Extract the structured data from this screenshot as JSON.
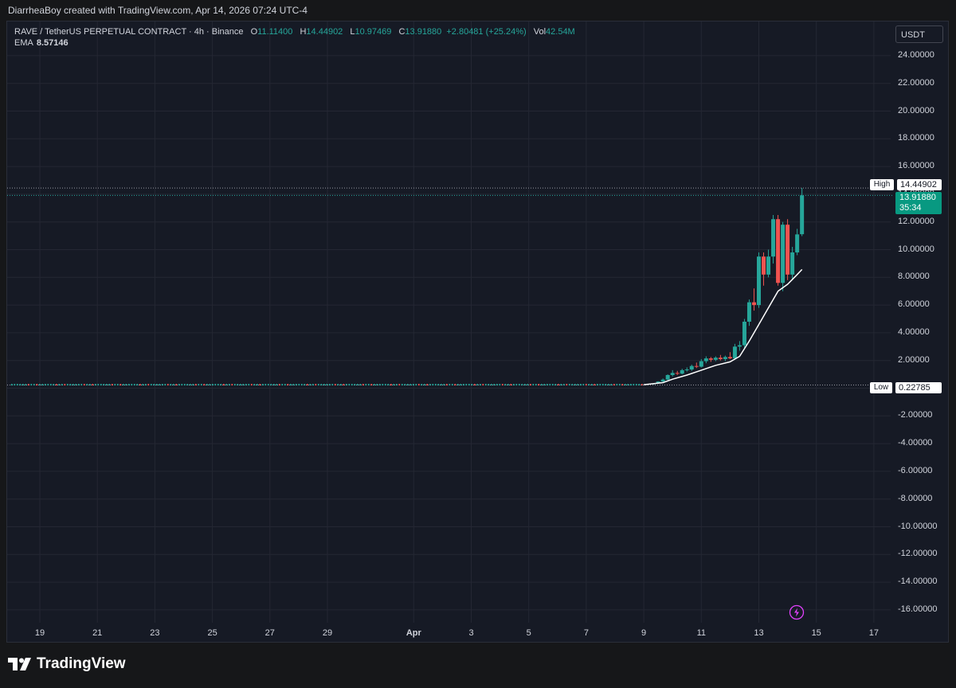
{
  "credit": "DiarrheaBoy created with TradingView.com, Apr 14, 2026 07:24 UTC-4",
  "legend": {
    "symbol": "RAVE / TetherUS PERPETUAL CONTRACT · 4h · Binance",
    "o_label": "O",
    "o": "11.11400",
    "h_label": "H",
    "h": "14.44902",
    "l_label": "L",
    "l": "10.97469",
    "c_label": "C",
    "c": "13.91880",
    "change": "+2.80481 (+25.24%)",
    "vol_label": "Vol",
    "vol": "42.54M"
  },
  "ema": {
    "label": "EMA",
    "value": "8.57146"
  },
  "currency": "USDT",
  "markers": {
    "high_label": "High",
    "high_value": "14.44902",
    "last_price": "13.91880",
    "countdown": "35:34",
    "low_label": "Low",
    "low_value": "0.22785"
  },
  "brand": "TradingView",
  "colors": {
    "up": "#26a69a",
    "down": "#ef5350",
    "ema": "#ffffff",
    "background": "#161a25",
    "grid": "#242733"
  },
  "chart_data": {
    "type": "candlestick",
    "title": "RAVE / TetherUS PERPETUAL CONTRACT · 4h · Binance",
    "ylim": [
      -17,
      25
    ],
    "y_ticks": [
      "24.00000",
      "22.00000",
      "20.00000",
      "18.00000",
      "16.00000",
      "14.00000",
      "12.00000",
      "10.00000",
      "8.00000",
      "6.00000",
      "4.00000",
      "2.00000",
      "0.00000",
      "-2.00000",
      "-4.00000",
      "-6.00000",
      "-8.00000",
      "-10.00000",
      "-12.00000",
      "-14.00000",
      "-16.00000"
    ],
    "x_ticks": [
      "19",
      "21",
      "23",
      "25",
      "27",
      "29",
      "Apr",
      "3",
      "5",
      "7",
      "9",
      "11",
      "13",
      "15",
      "17"
    ],
    "high": 14.44902,
    "low": 0.22785,
    "last": 13.9188,
    "flat_range": {
      "from": "Mar 18",
      "to": "Apr 9",
      "approx_price": 0.25
    },
    "candles": [
      {
        "t": "Apr 9 08:00",
        "o": 0.3,
        "h": 0.36,
        "l": 0.26,
        "c": 0.34
      },
      {
        "t": "Apr 9 12:00",
        "o": 0.34,
        "h": 0.5,
        "l": 0.32,
        "c": 0.48
      },
      {
        "t": "Apr 9 16:00",
        "o": 0.48,
        "h": 0.7,
        "l": 0.45,
        "c": 0.62
      },
      {
        "t": "Apr 9 20:00",
        "o": 0.62,
        "h": 1.0,
        "l": 0.58,
        "c": 0.95
      },
      {
        "t": "Apr 10 00:00",
        "o": 0.95,
        "h": 1.3,
        "l": 0.85,
        "c": 1.1
      },
      {
        "t": "Apr 10 04:00",
        "o": 1.1,
        "h": 1.25,
        "l": 0.95,
        "c": 1.05
      },
      {
        "t": "Apr 10 08:00",
        "o": 1.05,
        "h": 1.4,
        "l": 1.0,
        "c": 1.3
      },
      {
        "t": "Apr 10 12:00",
        "o": 1.3,
        "h": 1.5,
        "l": 1.2,
        "c": 1.35
      },
      {
        "t": "Apr 10 16:00",
        "o": 1.35,
        "h": 1.7,
        "l": 1.25,
        "c": 1.6
      },
      {
        "t": "Apr 10 20:00",
        "o": 1.6,
        "h": 1.85,
        "l": 1.45,
        "c": 1.55
      },
      {
        "t": "Apr 11 00:00",
        "o": 1.55,
        "h": 2.1,
        "l": 1.5,
        "c": 1.95
      },
      {
        "t": "Apr 11 04:00",
        "o": 1.95,
        "h": 2.3,
        "l": 1.8,
        "c": 2.15
      },
      {
        "t": "Apr 11 08:00",
        "o": 2.15,
        "h": 2.25,
        "l": 1.9,
        "c": 2.05
      },
      {
        "t": "Apr 11 12:00",
        "o": 2.05,
        "h": 2.3,
        "l": 1.95,
        "c": 2.2
      },
      {
        "t": "Apr 11 16:00",
        "o": 2.2,
        "h": 2.4,
        "l": 2.0,
        "c": 2.1
      },
      {
        "t": "Apr 11 20:00",
        "o": 2.1,
        "h": 2.35,
        "l": 1.95,
        "c": 2.25
      },
      {
        "t": "Apr 12 00:00",
        "o": 2.25,
        "h": 2.6,
        "l": 2.1,
        "c": 2.15
      },
      {
        "t": "Apr 12 04:00",
        "o": 2.15,
        "h": 3.2,
        "l": 2.05,
        "c": 3.0
      },
      {
        "t": "Apr 12 08:00",
        "o": 3.0,
        "h": 3.4,
        "l": 2.7,
        "c": 3.1
      },
      {
        "t": "Apr 12 12:00",
        "o": 3.1,
        "h": 5.0,
        "l": 2.9,
        "c": 4.8
      },
      {
        "t": "Apr 12 16:00",
        "o": 4.8,
        "h": 6.4,
        "l": 4.5,
        "c": 6.2
      },
      {
        "t": "Apr 12 20:00",
        "o": 6.2,
        "h": 7.2,
        "l": 5.6,
        "c": 6.0
      },
      {
        "t": "Apr 13 00:00",
        "o": 6.0,
        "h": 9.8,
        "l": 5.8,
        "c": 9.5
      },
      {
        "t": "Apr 13 04:00",
        "o": 9.5,
        "h": 9.8,
        "l": 7.4,
        "c": 8.2
      },
      {
        "t": "Apr 13 08:00",
        "o": 8.2,
        "h": 10.0,
        "l": 8.0,
        "c": 9.5
      },
      {
        "t": "Apr 13 12:00",
        "o": 9.5,
        "h": 12.5,
        "l": 9.0,
        "c": 12.2
      },
      {
        "t": "Apr 13 16:00",
        "o": 12.2,
        "h": 12.5,
        "l": 7.4,
        "c": 7.6
      },
      {
        "t": "Apr 13 20:00",
        "o": 7.6,
        "h": 12.0,
        "l": 7.0,
        "c": 11.8
      },
      {
        "t": "Apr 14 00:00",
        "o": 11.8,
        "h": 12.2,
        "l": 7.8,
        "c": 8.2
      },
      {
        "t": "Apr 14 04:00",
        "o": 8.2,
        "h": 10.2,
        "l": 7.8,
        "c": 9.8
      },
      {
        "t": "Apr 14 08:00",
        "o": 9.8,
        "h": 11.5,
        "l": 9.6,
        "c": 11.1
      },
      {
        "t": "Apr 14 12:00",
        "o": 11.114,
        "h": 14.44902,
        "l": 10.97469,
        "c": 13.9188
      }
    ],
    "ema": [
      {
        "t": "Apr 9 00:00",
        "v": 0.25
      },
      {
        "t": "Apr 9 16:00",
        "v": 0.4
      },
      {
        "t": "Apr 10 00:00",
        "v": 0.65
      },
      {
        "t": "Apr 10 12:00",
        "v": 0.95
      },
      {
        "t": "Apr 11 00:00",
        "v": 1.3
      },
      {
        "t": "Apr 11 12:00",
        "v": 1.65
      },
      {
        "t": "Apr 12 00:00",
        "v": 1.9
      },
      {
        "t": "Apr 12 08:00",
        "v": 2.3
      },
      {
        "t": "Apr 12 16:00",
        "v": 3.4
      },
      {
        "t": "Apr 13 00:00",
        "v": 4.6
      },
      {
        "t": "Apr 13 08:00",
        "v": 5.8
      },
      {
        "t": "Apr 13 16:00",
        "v": 7.0
      },
      {
        "t": "Apr 14 00:00",
        "v": 7.5
      },
      {
        "t": "Apr 14 08:00",
        "v": 8.2
      },
      {
        "t": "Apr 14 12:00",
        "v": 8.57146
      }
    ]
  }
}
